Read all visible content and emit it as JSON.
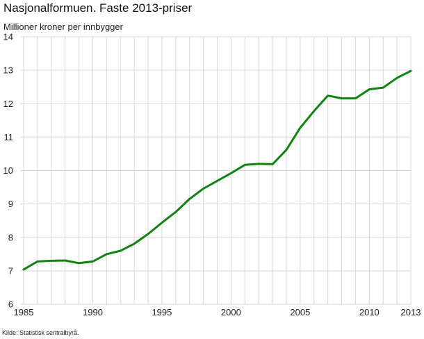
{
  "chart_data": {
    "type": "line",
    "title": "Nasjonalformuen. Faste 2013-priser",
    "ylabel": "Millioner kroner per innbygger",
    "xlabel": "",
    "source": "Kilde: Statistisk sentralbyrå.",
    "xlim": [
      1985,
      2013
    ],
    "ylim": [
      6,
      14
    ],
    "xticks": [
      1985,
      1990,
      1995,
      2000,
      2005,
      2010,
      2013
    ],
    "yticks": [
      6,
      7,
      8,
      9,
      10,
      11,
      12,
      13,
      14
    ],
    "grid": true,
    "series": [
      {
        "name": "Nasjonalformuen",
        "color": "#0f850f",
        "x": [
          1985,
          1986,
          1987,
          1988,
          1989,
          1990,
          1991,
          1992,
          1993,
          1994,
          1995,
          1996,
          1997,
          1998,
          1999,
          2000,
          2001,
          2002,
          2003,
          2004,
          2005,
          2006,
          2007,
          2008,
          2009,
          2010,
          2011,
          2012,
          2013
        ],
        "values": [
          7.04,
          7.28,
          7.3,
          7.31,
          7.23,
          7.28,
          7.5,
          7.6,
          7.81,
          8.1,
          8.44,
          8.76,
          9.15,
          9.46,
          9.69,
          9.92,
          10.17,
          10.2,
          10.19,
          10.62,
          11.28,
          11.78,
          12.24,
          12.16,
          12.16,
          12.43,
          12.48,
          12.77,
          12.98
        ]
      }
    ]
  }
}
